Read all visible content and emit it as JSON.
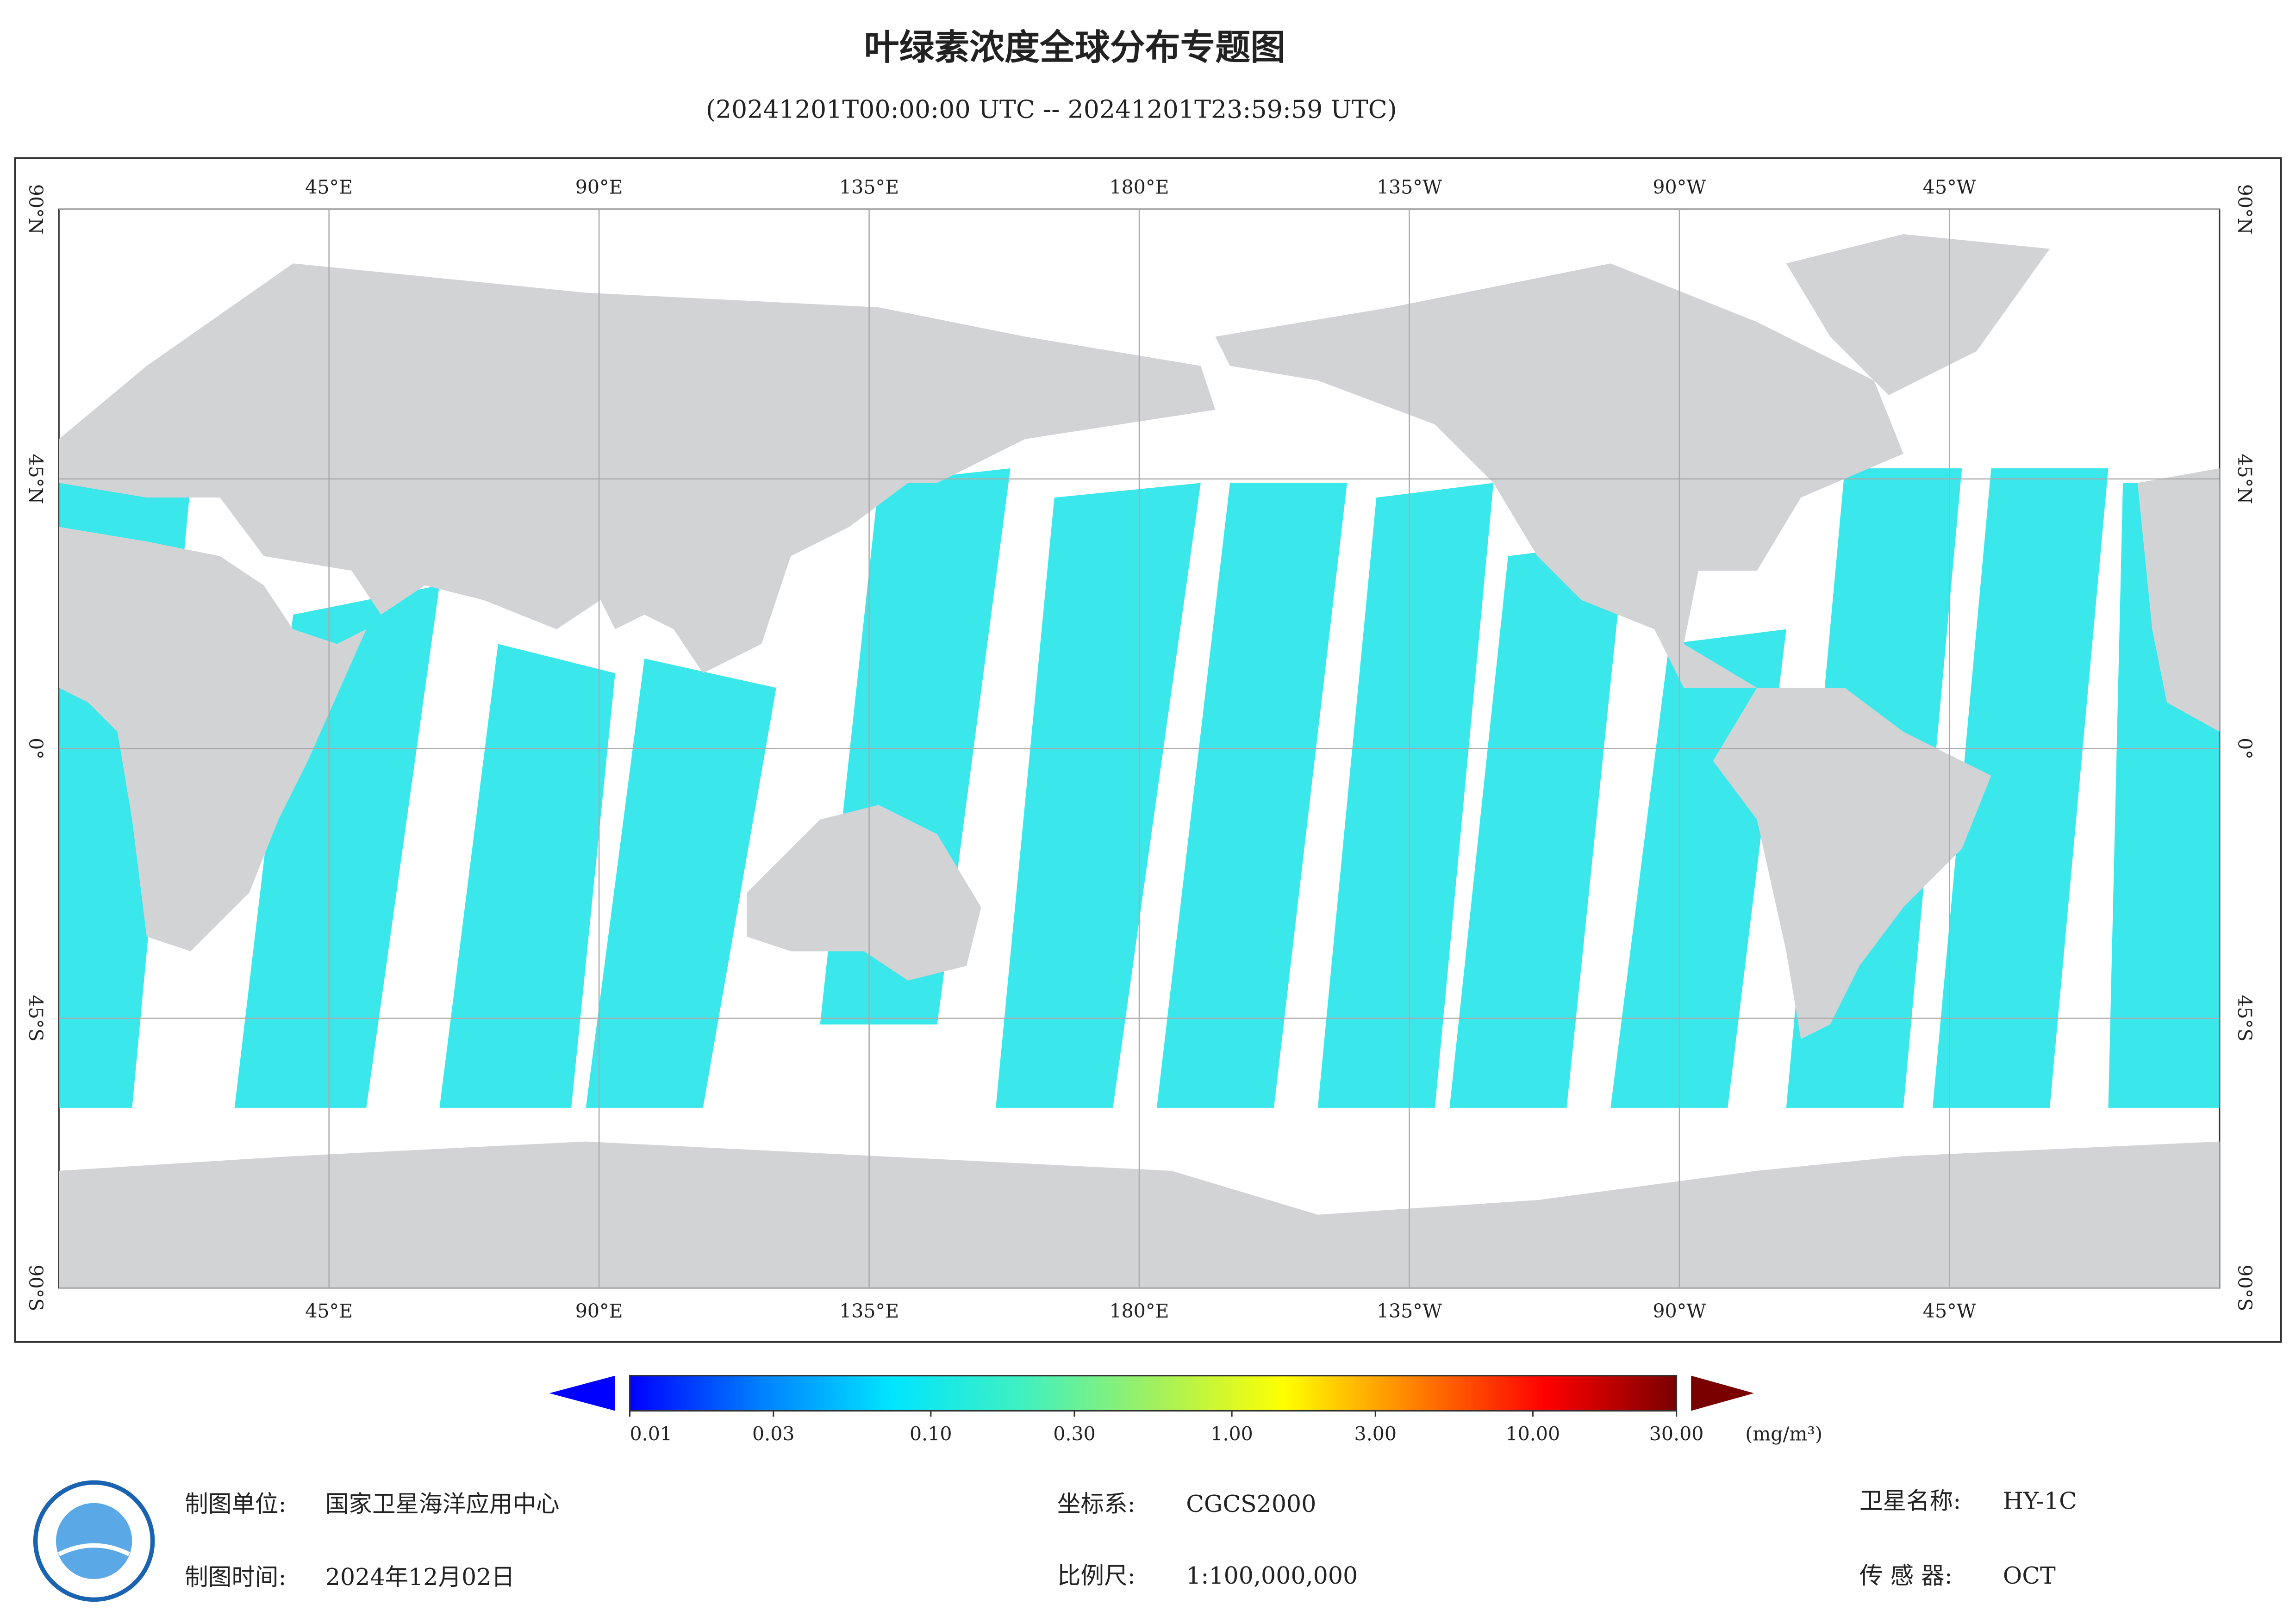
{
  "title": "叶绿素浓度全球分布专题图",
  "subtitle": "(20241201T00:00:00 UTC -- 20241201T23:59:59 UTC)",
  "map": {
    "xlim": [
      0,
      360
    ],
    "ylim": [
      -90,
      90
    ],
    "lon_ticks": [
      {
        "value": 45,
        "label": "45°E"
      },
      {
        "value": 90,
        "label": "90°E"
      },
      {
        "value": 135,
        "label": "135°E"
      },
      {
        "value": 180,
        "label": "180°E"
      },
      {
        "value": 225,
        "label": "135°W"
      },
      {
        "value": 270,
        "label": "90°W"
      },
      {
        "value": 315,
        "label": "45°W"
      }
    ],
    "lat_ticks": [
      {
        "value": 90,
        "label": "90°N"
      },
      {
        "value": 45,
        "label": "45°N"
      },
      {
        "value": 0,
        "label": "0°"
      },
      {
        "value": -45,
        "label": "45°S"
      },
      {
        "value": -90,
        "label": "90°S"
      }
    ]
  },
  "colorbar": {
    "scale": "log",
    "lim": [
      0.01,
      30
    ],
    "colors": [
      "#0000ff",
      "#0080ff",
      "#00e5ff",
      "#40f0c0",
      "#a0f060",
      "#ffff00",
      "#ff8000",
      "#ff0000",
      "#7a0000"
    ],
    "ticks": [
      {
        "value": 0.01,
        "label": "0.01"
      },
      {
        "value": 0.03,
        "label": "0.03"
      },
      {
        "value": 0.1,
        "label": "0.10"
      },
      {
        "value": 0.3,
        "label": "0.30"
      },
      {
        "value": 1,
        "label": "1.00"
      },
      {
        "value": 3,
        "label": "3.00"
      },
      {
        "value": 10,
        "label": "10.00"
      },
      {
        "value": 30,
        "label": "30.00"
      }
    ],
    "unit": "(mg/m³)"
  },
  "footer": {
    "producer_label": "制图单位:",
    "producer": "国家卫星海洋应用中心",
    "date_label": "制图时间:",
    "date": "2024年12月02日",
    "crs_label": "坐标系:",
    "crs": "CGCS2000",
    "scale_label": "比例尺:",
    "scale": "1:100,000,000",
    "satellite_label": "卫星名称:",
    "satellite": "HY-1C",
    "sensor_label": "传 感 器:",
    "sensor": "OCT"
  }
}
